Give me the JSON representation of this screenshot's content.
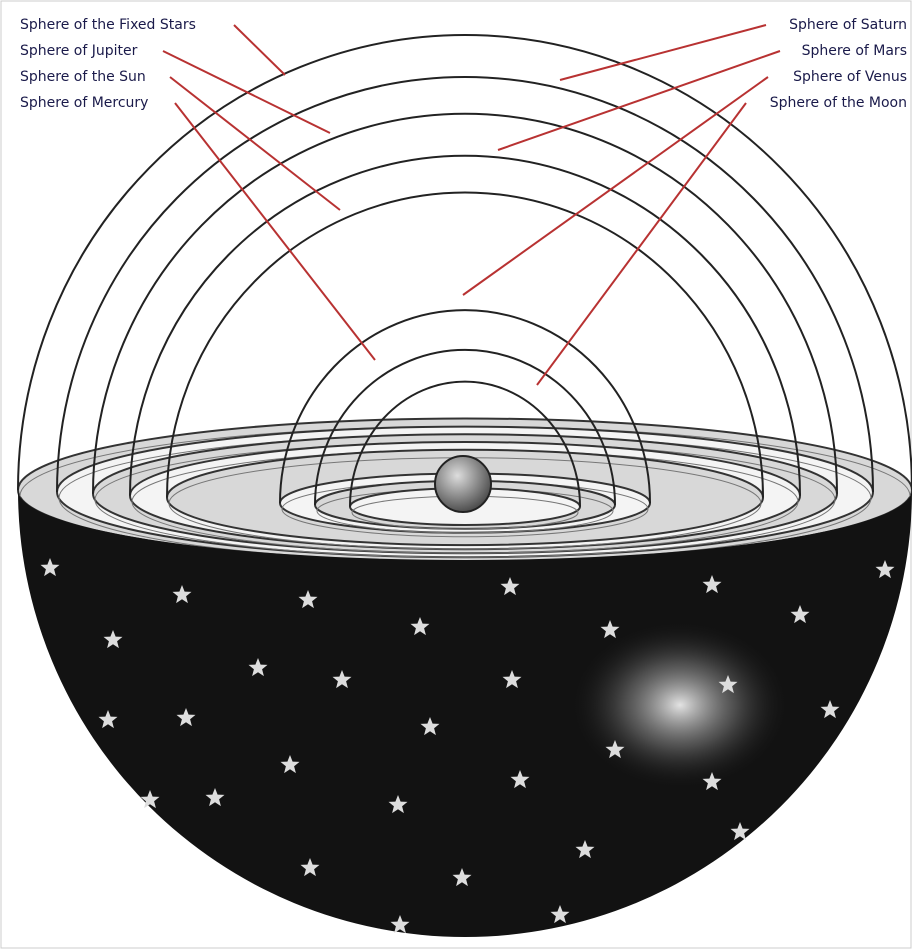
{
  "labels": {
    "left": [
      "Sphere of the Fixed Stars",
      "Sphere of Jupiter",
      "Sphere of the Sun",
      "Sphere of Mercury"
    ],
    "right": [
      "Sphere of Saturn",
      "Sphere of Mars",
      "Sphere of Venus",
      "Sphere of the Moon"
    ]
  }
}
